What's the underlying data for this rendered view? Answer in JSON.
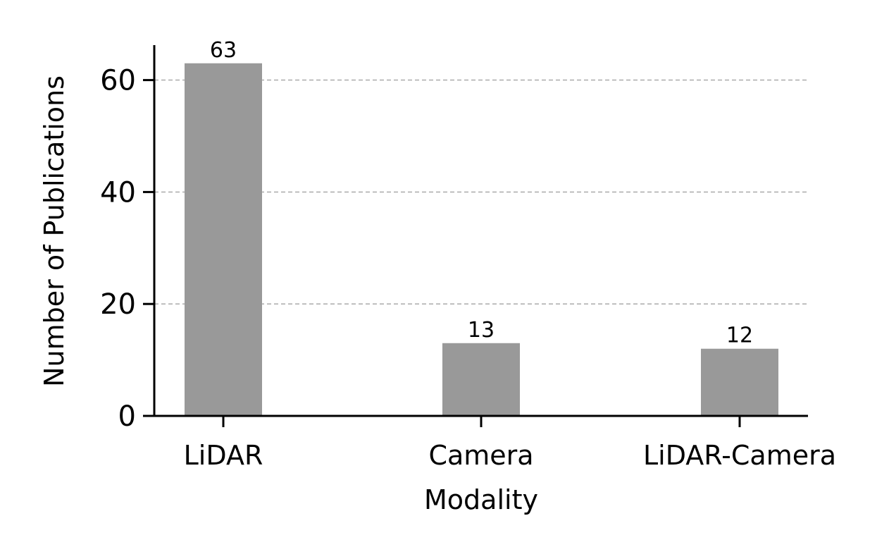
{
  "chart_data": {
    "type": "bar",
    "title": "",
    "xlabel": "Modality",
    "ylabel": "Number of Publications",
    "categories": [
      "LiDAR",
      "Camera",
      "LiDAR-Camera"
    ],
    "values": [
      63,
      13,
      12
    ],
    "data_labels": [
      "63",
      "13",
      "12"
    ],
    "ylim": [
      0,
      66
    ],
    "yticks": [
      0,
      20,
      40,
      60
    ],
    "ytick_labels": [
      "0",
      "20",
      "40",
      "60"
    ],
    "grid": "y, dashed",
    "bar_color": "#999999",
    "grid_color": "#b0b0b0",
    "legend": "none"
  }
}
